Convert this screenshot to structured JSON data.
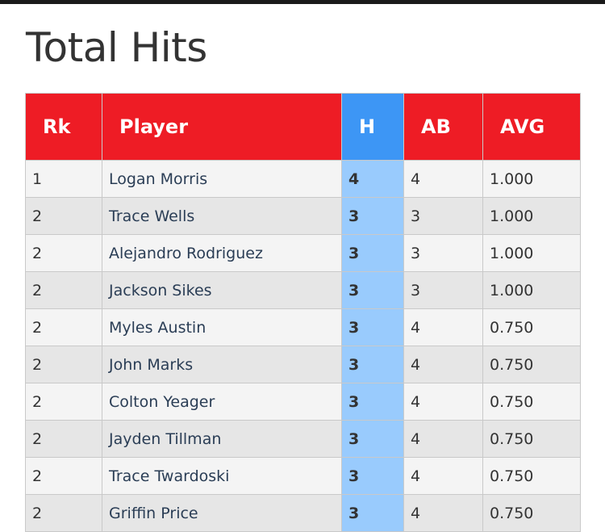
{
  "page": {
    "title": "Total Hits"
  },
  "table": {
    "columns": [
      "Rk",
      "Player",
      "H",
      "AB",
      "AVG"
    ],
    "highlight_column": "H",
    "colors": {
      "header": "#ee1c25",
      "highlight_header": "#3d96f5",
      "highlight_cells": "#99cbfd"
    },
    "rows": [
      {
        "rk": "1",
        "player": "Logan Morris",
        "h": "4",
        "ab": "4",
        "avg": "1.000"
      },
      {
        "rk": "2",
        "player": "Trace Wells",
        "h": "3",
        "ab": "3",
        "avg": "1.000"
      },
      {
        "rk": "2",
        "player": "Alejandro Rodriguez",
        "h": "3",
        "ab": "3",
        "avg": "1.000"
      },
      {
        "rk": "2",
        "player": "Jackson Sikes",
        "h": "3",
        "ab": "3",
        "avg": "1.000"
      },
      {
        "rk": "2",
        "player": "Myles Austin",
        "h": "3",
        "ab": "4",
        "avg": "0.750"
      },
      {
        "rk": "2",
        "player": "John Marks",
        "h": "3",
        "ab": "4",
        "avg": "0.750"
      },
      {
        "rk": "2",
        "player": "Colton Yeager",
        "h": "3",
        "ab": "4",
        "avg": "0.750"
      },
      {
        "rk": "2",
        "player": "Jayden Tillman",
        "h": "3",
        "ab": "4",
        "avg": "0.750"
      },
      {
        "rk": "2",
        "player": "Trace Twardoski",
        "h": "3",
        "ab": "4",
        "avg": "0.750"
      },
      {
        "rk": "2",
        "player": "Griffin Price",
        "h": "3",
        "ab": "4",
        "avg": "0.750"
      }
    ]
  }
}
